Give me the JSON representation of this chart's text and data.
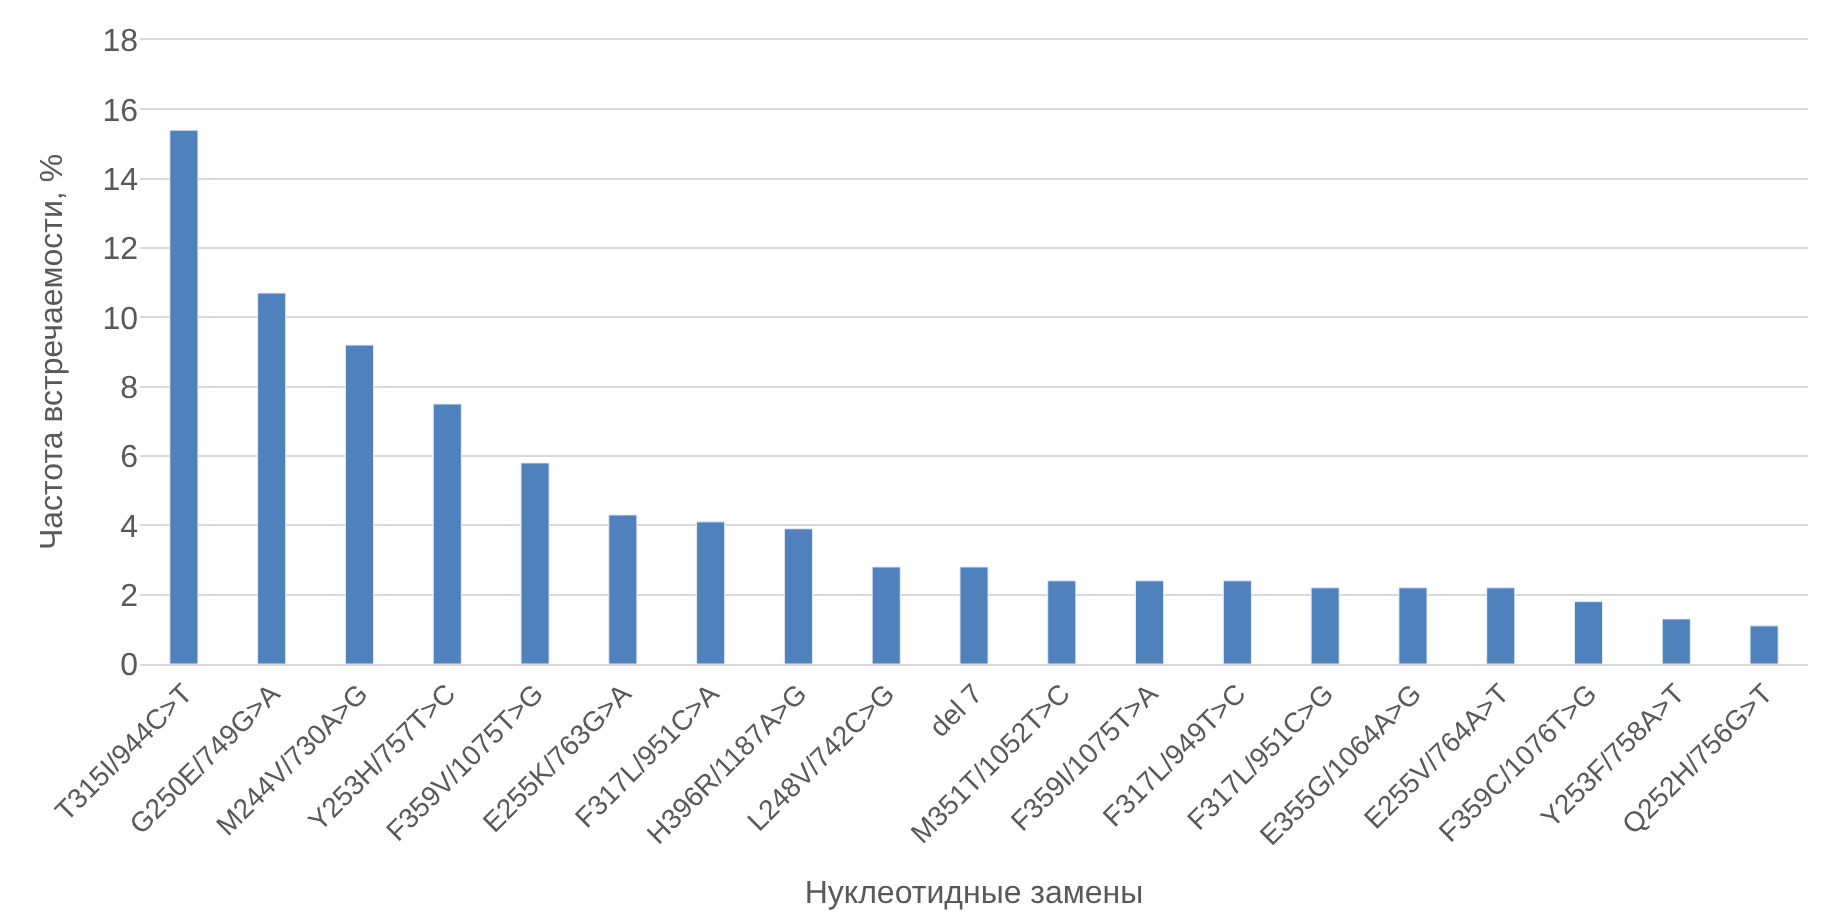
{
  "chart_data": {
    "type": "bar",
    "xlabel": "Нуклеотидные замены",
    "ylabel": "Частота встречаемости, %",
    "categories": [
      "T315I/944C>T",
      "G250E/749G>A",
      "M244V/730A>G",
      "Y253H/757T>C",
      "F359V/1075T>G",
      "E255K/763G>A",
      "F317L/951C>A",
      "H396R/1187A>G",
      "L248V/742C>G",
      "del 7",
      "M351T/1052T>C",
      "F359I/1075T>A",
      "F317L/949T>C",
      "F317L/951C>G",
      "E355G/1064A>G",
      "E255V/764A>T",
      "F359C/1076T>G",
      "Y253F/758A>T",
      "Q252H/756G>T"
    ],
    "values": [
      15.4,
      10.7,
      9.2,
      7.5,
      5.8,
      4.3,
      4.1,
      3.9,
      2.8,
      2.8,
      2.4,
      2.4,
      2.4,
      2.2,
      2.2,
      2.2,
      1.8,
      1.3,
      1.1
    ],
    "color": "#4f81bd",
    "ylim": [
      0,
      18
    ],
    "yticks": [
      0,
      2,
      4,
      6,
      8,
      10,
      12,
      14,
      16,
      18
    ],
    "grid": "y"
  }
}
